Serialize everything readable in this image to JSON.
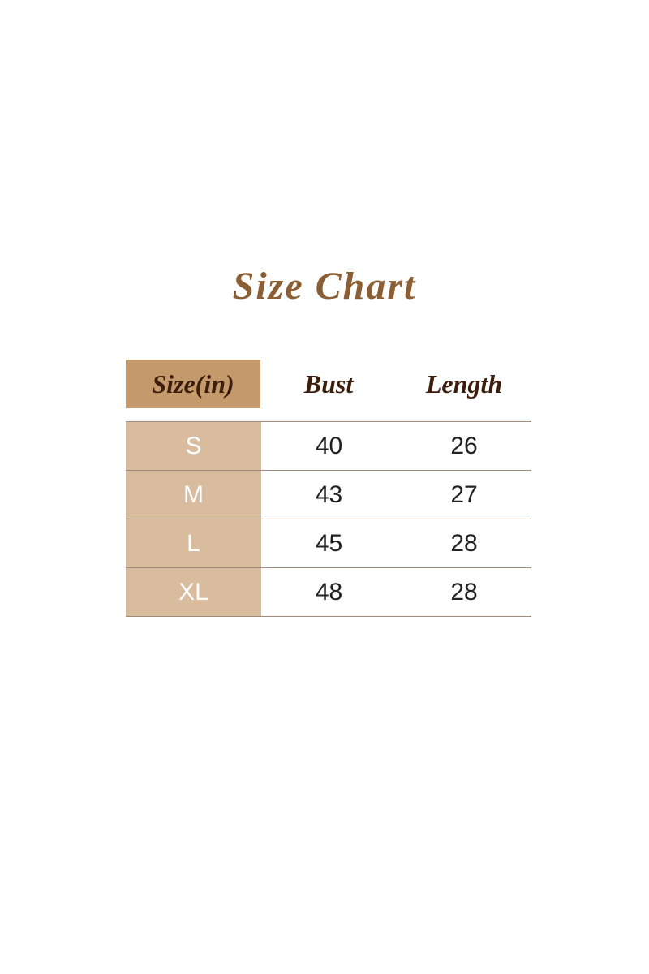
{
  "title": "Size Chart",
  "headers": [
    "Size(in)",
    "Bust",
    "Length"
  ],
  "rows": [
    [
      "S",
      "40",
      "26"
    ],
    [
      "M",
      "43",
      "27"
    ],
    [
      "L",
      "45",
      "28"
    ],
    [
      "XL",
      "48",
      "28"
    ]
  ],
  "colors": {
    "title": "#8b5e34",
    "header_size_bg": "#c49a6c",
    "size_col_bg": "#d9bc9e",
    "header_text": "#3d1e0c"
  }
}
